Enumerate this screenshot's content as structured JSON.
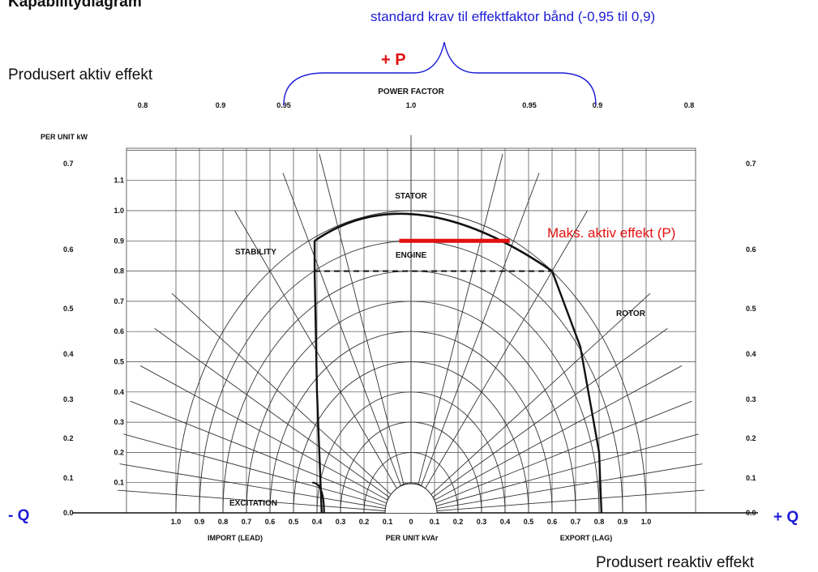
{
  "header": {
    "title_fragment": "Kapabilitydiagram",
    "band_note": "standard krav til effektfaktor bånd (-0,95 til 0,9)",
    "plus_p": "+ P",
    "active_power_label": "Produsert aktiv effekt",
    "reactive_power_label": "Produsert reaktiv effekt",
    "minus_q": "- Q",
    "plus_q": "+ Q",
    "max_active_label": "Maks. aktiv effekt (P)"
  },
  "chart_data": {
    "type": "capability-diagram",
    "power_factor_title": "POWER FACTOR",
    "y_axis_title": "PER UNIT kW",
    "x_axis_title": "PER UNIT kVAr",
    "import_label": "IMPORT (LEAD)",
    "export_label": "EXPORT (LAG)",
    "region_labels": {
      "stator": "STATOR",
      "stability": "STABILITY",
      "engine": "ENGINE",
      "rotor": "ROTOR",
      "excitation": "EXCITATION"
    },
    "x_ticks": [
      "1.0",
      "0.9",
      "0.8",
      "0.7",
      "0.6",
      "0.5",
      "0.4",
      "0.3",
      "0.2",
      "0.1",
      "0",
      "0.1",
      "0.2",
      "0.3",
      "0.4",
      "0.5",
      "0.6",
      "0.7",
      "0.8",
      "0.9",
      "1.0"
    ],
    "x_range": [
      -1.0,
      1.0
    ],
    "y_ticks": [
      "0.1",
      "0.2",
      "0.3",
      "0.4",
      "0.5",
      "0.6",
      "0.7",
      "0.8",
      "0.9",
      "1.0",
      "1.1"
    ],
    "y_range": [
      0,
      1.2
    ],
    "pf_top_labels": [
      {
        "text": "0.8",
        "q": -0.6,
        "p": 0.8
      },
      {
        "text": "0.9",
        "q": -0.436,
        "p": 0.9
      },
      {
        "text": "0.95",
        "q": -0.312,
        "p": 0.95
      },
      {
        "text": "1.0",
        "q": 0,
        "p": 1
      },
      {
        "text": "0.95",
        "q": 0.312,
        "p": 0.95
      },
      {
        "text": "0.9",
        "q": 0.436,
        "p": 0.9
      },
      {
        "text": "0.8",
        "q": 0.6,
        "p": 0.8
      }
    ],
    "pf_side_labels": [
      "0.7",
      "0.6",
      "0.5",
      "0.4",
      "0.3",
      "0.2",
      "0.1",
      "0.0"
    ],
    "pf_side_values": [
      0.7,
      0.6,
      0.5,
      0.4,
      0.3,
      0.2,
      0.1,
      0.0
    ],
    "stator_limit_pu": 1.0,
    "engine_limit_pu": 0.8,
    "max_active_power_pu": 0.9,
    "max_active_span_q": [
      -0.05,
      0.42
    ],
    "stability_curve": [
      [
        -0.38,
        0.0
      ],
      [
        -0.4,
        0.4
      ],
      [
        -0.41,
        0.8
      ],
      [
        -0.41,
        0.9
      ]
    ],
    "stator_curve_start": [
      -0.41,
      0.9
    ],
    "stator_curve_end": [
      0.6,
      0.8
    ],
    "rotor_curve": [
      [
        0.6,
        0.8
      ],
      [
        0.72,
        0.55
      ],
      [
        0.8,
        0.2
      ],
      [
        0.81,
        0.0
      ]
    ],
    "excitation_bump": [
      [
        -0.42,
        0.1
      ],
      [
        -0.37,
        0.0
      ]
    ]
  }
}
